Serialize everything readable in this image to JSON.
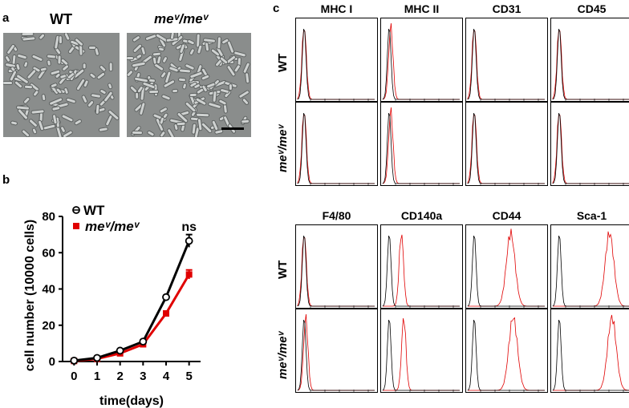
{
  "figure": {
    "panel_a_letter": "a",
    "panel_b_letter": "b",
    "panel_c_letter": "c",
    "micrograph_labels": [
      "WT",
      "meᵛ/meᵛ"
    ]
  },
  "chart_data": {
    "type": "line",
    "x": [
      0,
      1,
      2,
      3,
      4,
      5
    ],
    "series": [
      {
        "name": "WT",
        "values": [
          0.5,
          2,
          6,
          11,
          35.5,
          66.5
        ],
        "errors": [
          0.3,
          0.5,
          0.7,
          0.8,
          1,
          3.5
        ],
        "color": "#000000"
      },
      {
        "name": "meᵛ/meᵛ",
        "values": [
          0.3,
          1.5,
          4.5,
          9.5,
          26.5,
          48
        ],
        "errors": [
          0.3,
          0.5,
          0.6,
          0.8,
          1.2,
          2.5
        ],
        "color": "#e00000"
      }
    ],
    "xlabel": "time(days)",
    "ylabel": "cell number (10000 cells)",
    "xticks": [
      "0",
      "1",
      "2",
      "3",
      "4",
      "5"
    ],
    "yticks": [
      "0",
      "20",
      "40",
      "60",
      "80"
    ],
    "ylim": [
      0,
      80
    ],
    "xlim": [
      -0.5,
      5.5
    ],
    "annotation": "ns",
    "legend": "top-left"
  },
  "flow": {
    "markers_top": [
      "MHC I",
      "MHC II",
      "CD31",
      "CD45"
    ],
    "markers_bottom": [
      "F4/80",
      "CD140a",
      "CD44",
      "Sca-1"
    ],
    "row_labels": [
      "WT",
      "meᵛ/meᵛ"
    ],
    "control_color": "#000000",
    "stain_color": "#e00000"
  }
}
